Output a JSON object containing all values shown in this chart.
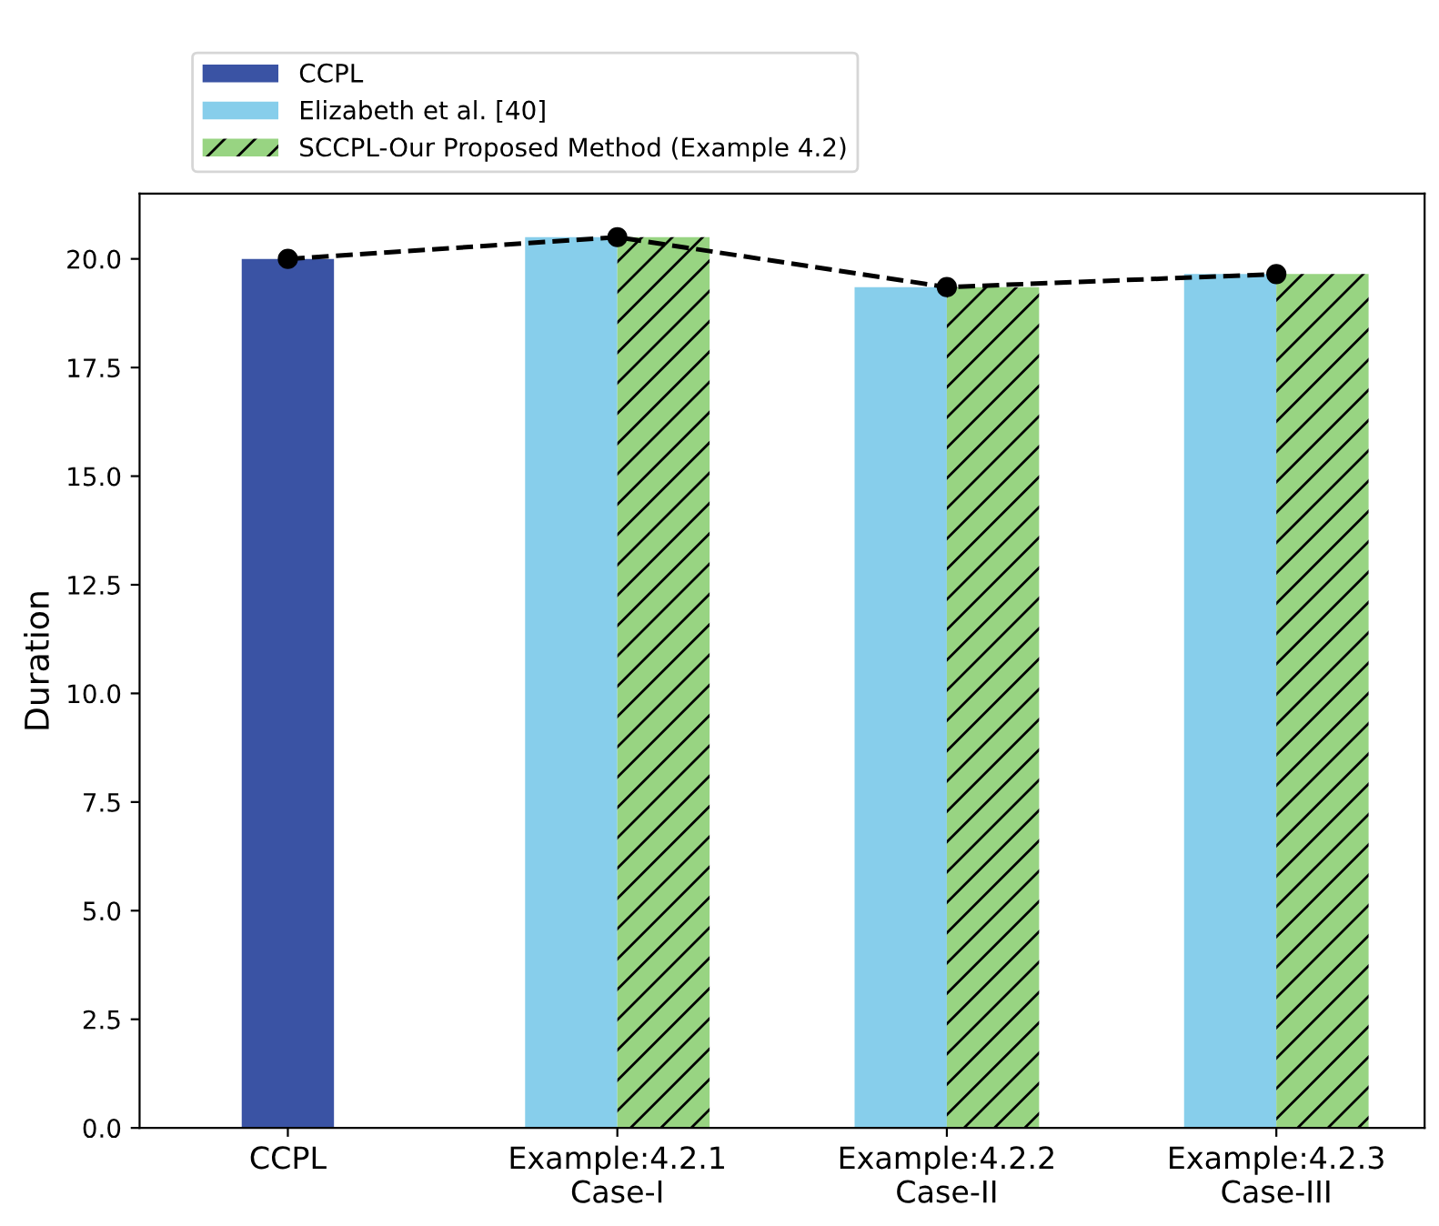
{
  "chart_data": {
    "type": "bar",
    "ylabel": "Duration",
    "categories": [
      "CCPL",
      "Example:4.2.1\nCase-I",
      "Example:4.2.2\nCase-II",
      "Example:4.2.3\nCase-III"
    ],
    "series": [
      {
        "name": "CCPL",
        "color": "#3a53a4",
        "values": [
          20.0,
          null,
          null,
          null
        ]
      },
      {
        "name": "Elizabeth et al. [40]",
        "color": "#87ceeb",
        "values": [
          null,
          20.5,
          19.35,
          19.65
        ]
      },
      {
        "name": "SCCPL-Our Proposed Method (Example 4.2)",
        "color": "#98d482",
        "values": [
          null,
          20.5,
          19.35,
          19.65
        ]
      },
      {
        "type": "line",
        "color": "#000000",
        "marker": "circle",
        "line_style": "dashed",
        "values": [
          20.0,
          20.5,
          19.35,
          19.65
        ]
      }
    ],
    "ylim": [
      0,
      21.5
    ],
    "yticks": [
      {
        "value": 0,
        "label": "0.0"
      },
      2.5,
      {
        "value": 5,
        "label": "5.0"
      },
      7.5,
      {
        "value": 10,
        "label": "10.0"
      },
      12.5,
      {
        "value": 15,
        "label": "15.0"
      },
      17.5,
      {
        "value": 20,
        "label": "20.0"
      }
    ],
    "legend": "top",
    "grid": false
  }
}
